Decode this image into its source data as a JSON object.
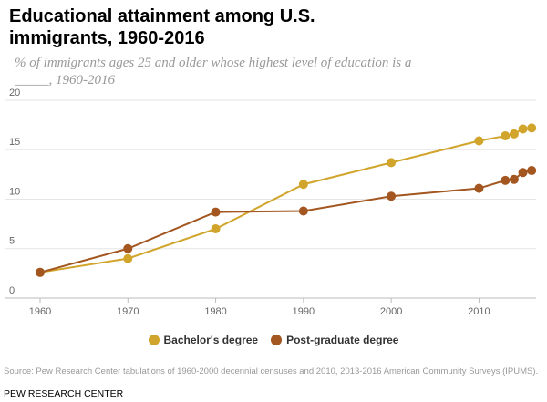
{
  "chart_data": {
    "type": "line",
    "title": "Educational attainment among U.S. immigrants, 1960-2016",
    "subtitle": "% of immigrants ages 25 and older whose highest level of education is a _____, 1960-2016",
    "x": [
      1960,
      1970,
      1980,
      1990,
      2000,
      2010,
      2013,
      2014,
      2015,
      2016
    ],
    "series": [
      {
        "name": "Bachelor's degree",
        "color": "#d1a52b",
        "values": [
          2.6,
          4.0,
          7.0,
          11.5,
          13.7,
          15.9,
          16.4,
          16.6,
          17.1,
          17.2
        ]
      },
      {
        "name": "Post-graduate degree",
        "color": "#a3561f",
        "values": [
          2.6,
          5.0,
          8.7,
          8.8,
          10.3,
          11.1,
          11.9,
          12.0,
          12.7,
          12.9
        ]
      }
    ],
    "xlim": [
      1960,
      2016.5
    ],
    "xticks": [
      1960,
      1970,
      1980,
      1990,
      2000,
      2010
    ],
    "ylim": [
      0,
      20
    ],
    "yticks": [
      0,
      5,
      10,
      15,
      20
    ],
    "grid": true,
    "legend": "bottom",
    "source": "Source: Pew Research Center tabulations of 1960-2000 decennial censuses and 2010, 2013-2016 American Community Surveys (IPUMS).",
    "brand": "PEW RESEARCH CENTER"
  }
}
